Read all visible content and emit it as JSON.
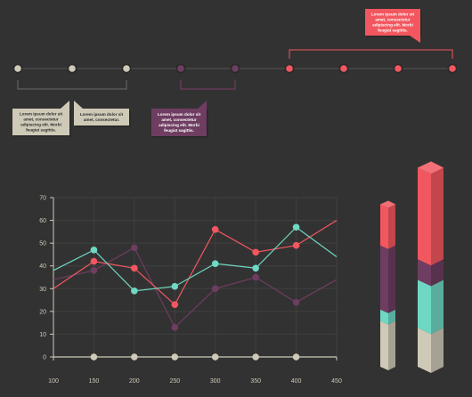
{
  "colors": {
    "background": "#333232",
    "beige": "#cfcab8",
    "purple": "#6e3d61",
    "coral": "#f2575f",
    "teal": "#6fd8c4",
    "grid": "#404040",
    "axis": "#cfcab8",
    "timeline_line": "#555555"
  },
  "timeline": {
    "dots": [
      {
        "color": "beige"
      },
      {
        "color": "beige"
      },
      {
        "color": "beige"
      },
      {
        "color": "purple"
      },
      {
        "color": "purple"
      },
      {
        "color": "coral"
      },
      {
        "color": "coral"
      },
      {
        "color": "coral"
      },
      {
        "color": "coral"
      }
    ],
    "callouts": [
      {
        "color": "beige",
        "lines": [
          "Lorem ipsum dolor sit",
          "amet, consectetur",
          "adipiscing elit. Morbi",
          "feugiat sagittis."
        ]
      },
      {
        "color": "beige",
        "lines": [
          "Lorem ipsum dolor sit",
          "amet, consectetur."
        ]
      },
      {
        "color": "purple",
        "lines": [
          "Lorem ipsum dolor sit",
          "amet, consectetur",
          "adipiscing elit. Morbi",
          "feugiat sagittis."
        ]
      },
      {
        "color": "coral",
        "lines": [
          "Lorem ipsum dolor sit",
          "amet, consectetur",
          "adipiscing elit. Morbi",
          "feugiat sagittis."
        ]
      }
    ]
  },
  "chart_data": [
    {
      "type": "line",
      "x": [
        100,
        150,
        200,
        250,
        300,
        350,
        400,
        450
      ],
      "xlim": [
        100,
        450
      ],
      "ylim": [
        0,
        70
      ],
      "yticks": [
        0,
        10,
        20,
        30,
        40,
        50,
        60,
        70
      ],
      "xticks": [
        100,
        150,
        200,
        250,
        300,
        350,
        400,
        450
      ],
      "grid": true,
      "series": [
        {
          "color": "purple",
          "values": [
            34,
            38,
            48,
            13,
            30,
            35,
            24,
            34
          ],
          "markers": [
            false,
            true,
            true,
            true,
            true,
            true,
            true,
            false
          ]
        },
        {
          "color": "coral",
          "values": [
            30,
            42,
            39,
            23,
            56,
            46,
            49,
            60
          ],
          "markers": [
            false,
            true,
            true,
            true,
            true,
            true,
            true,
            false
          ]
        },
        {
          "color": "teal",
          "values": [
            38,
            47,
            29,
            31,
            41,
            39,
            57,
            44
          ],
          "markers": [
            false,
            true,
            true,
            true,
            true,
            true,
            true,
            false
          ]
        },
        {
          "color": "beige",
          "values": [
            0,
            0,
            0,
            0,
            0,
            0,
            0,
            0
          ],
          "markers": [
            false,
            true,
            true,
            true,
            true,
            true,
            true,
            false
          ]
        }
      ]
    },
    {
      "type": "bar",
      "stacked": true,
      "bars": [
        {
          "segments": [
            {
              "color": "beige",
              "value": 20
            },
            {
              "color": "teal",
              "value": 5
            },
            {
              "color": "purple",
              "value": 28
            },
            {
              "color": "coral",
              "value": 18
            }
          ]
        },
        {
          "segments": [
            {
              "color": "beige",
              "value": 17
            },
            {
              "color": "teal",
              "value": 21
            },
            {
              "color": "purple",
              "value": 9
            },
            {
              "color": "coral",
              "value": 40
            }
          ]
        }
      ]
    }
  ]
}
